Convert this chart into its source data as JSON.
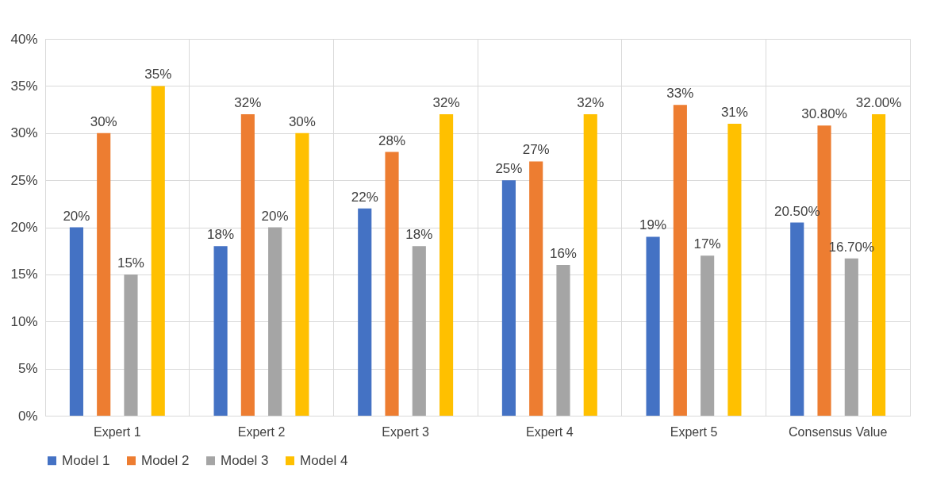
{
  "chart_data": {
    "type": "bar",
    "categories": [
      "Expert 1",
      "Expert 2",
      "Expert 3",
      "Expert 4",
      "Expert 5",
      "Consensus Value"
    ],
    "series": [
      {
        "name": "Model 1",
        "color": "#4472c4",
        "values": [
          20,
          18,
          22,
          25,
          19,
          20.5
        ],
        "value_labels": [
          "20%",
          "18%",
          "22%",
          "25%",
          "19%",
          "20.50%"
        ]
      },
      {
        "name": "Model 2",
        "color": "#ed7d31",
        "values": [
          30,
          32,
          28,
          27,
          33,
          30.8
        ],
        "value_labels": [
          "30%",
          "32%",
          "28%",
          "27%",
          "33%",
          "30.80%"
        ]
      },
      {
        "name": "Model 3",
        "color": "#a5a5a5",
        "values": [
          15,
          20,
          18,
          16,
          17,
          16.7
        ],
        "value_labels": [
          "15%",
          "20%",
          "18%",
          "16%",
          "17%",
          "16.70%"
        ]
      },
      {
        "name": "Model 4",
        "color": "#ffc000",
        "values": [
          35,
          30,
          32,
          32,
          31,
          32
        ],
        "value_labels": [
          "35%",
          "30%",
          "32%",
          "32%",
          "31%",
          "32.00%"
        ]
      }
    ],
    "ylim": [
      0,
      40
    ],
    "yticks": [
      {
        "value": 0,
        "label": "0%"
      },
      {
        "value": 5,
        "label": "5%"
      },
      {
        "value": 10,
        "label": "10%"
      },
      {
        "value": 15,
        "label": "15%"
      },
      {
        "value": 20,
        "label": "20%"
      },
      {
        "value": 25,
        "label": "25%"
      },
      {
        "value": 30,
        "label": "30%"
      },
      {
        "value": 35,
        "label": "35%"
      },
      {
        "value": 40,
        "label": "40%"
      }
    ],
    "grid": true,
    "legend": "bottom"
  }
}
